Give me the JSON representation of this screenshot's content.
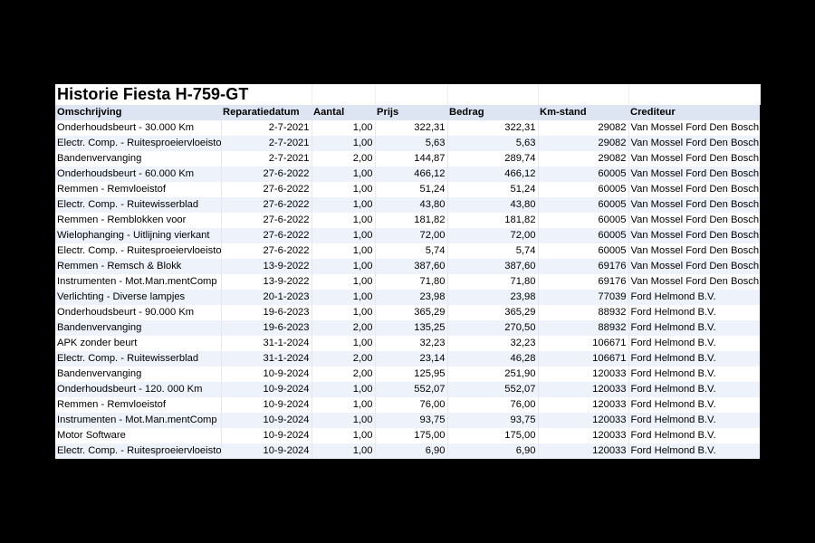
{
  "title": "Historie Fiesta H-759-GT",
  "columns": [
    "Omschrijving",
    "Reparatiedatum",
    "Aantal",
    "Prijs",
    "Bedrag",
    "Km-stand",
    "Crediteur"
  ],
  "rows": [
    [
      "Onderhoudsbeurt - 30.000 Km",
      "2-7-2021",
      "1,00",
      "322,31",
      "322,31",
      "29082",
      "Van Mossel Ford Den Bosch"
    ],
    [
      "Electr. Comp. - Ruitesproeiervloeistof",
      "2-7-2021",
      "1,00",
      "5,63",
      "5,63",
      "29082",
      "Van Mossel Ford Den Bosch"
    ],
    [
      "Bandenvervanging",
      "2-7-2021",
      "2,00",
      "144,87",
      "289,74",
      "29082",
      "Van Mossel Ford Den Bosch"
    ],
    [
      "Onderhoudsbeurt - 60.000 Km",
      "27-6-2022",
      "1,00",
      "466,12",
      "466,12",
      "60005",
      "Van Mossel Ford Den Bosch"
    ],
    [
      "Remmen - Remvloeistof",
      "27-6-2022",
      "1,00",
      "51,24",
      "51,24",
      "60005",
      "Van Mossel Ford Den Bosch"
    ],
    [
      "Electr. Comp. - Ruitewisserblad",
      "27-6-2022",
      "1,00",
      "43,80",
      "43,80",
      "60005",
      "Van Mossel Ford Den Bosch"
    ],
    [
      "Remmen - Remblokken voor",
      "27-6-2022",
      "1,00",
      "181,82",
      "181,82",
      "60005",
      "Van Mossel Ford Den Bosch"
    ],
    [
      "Wielophanging - Uitlijning vierkant",
      "27-6-2022",
      "1,00",
      "72,00",
      "72,00",
      "60005",
      "Van Mossel Ford Den Bosch"
    ],
    [
      "Electr. Comp. - Ruitesproeiervloeistof",
      "27-6-2022",
      "1,00",
      "5,74",
      "5,74",
      "60005",
      "Van Mossel Ford Den Bosch"
    ],
    [
      "Remmen - Remsch & Blokk",
      "13-9-2022",
      "1,00",
      "387,60",
      "387,60",
      "69176",
      "Van Mossel Ford Den Bosch"
    ],
    [
      "Instrumenten - Mot.Man.mentComp",
      "13-9-2022",
      "1,00",
      "71,80",
      "71,80",
      "69176",
      "Van Mossel Ford Den Bosch"
    ],
    [
      "Verlichting - Diverse lampjes",
      "20-1-2023",
      "1,00",
      "23,98",
      "23,98",
      "77039",
      "Ford Helmond B.V."
    ],
    [
      "Onderhoudsbeurt - 90.000 Km",
      "19-6-2023",
      "1,00",
      "365,29",
      "365,29",
      "88932",
      "Ford Helmond B.V."
    ],
    [
      "Bandenvervanging",
      "19-6-2023",
      "2,00",
      "135,25",
      "270,50",
      "88932",
      "Ford Helmond B.V."
    ],
    [
      "APK zonder beurt",
      "31-1-2024",
      "1,00",
      "32,23",
      "32,23",
      "106671",
      "Ford Helmond B.V."
    ],
    [
      "Electr. Comp. - Ruitewisserblad",
      "31-1-2024",
      "2,00",
      "23,14",
      "46,28",
      "106671",
      "Ford Helmond B.V."
    ],
    [
      "Bandenvervanging",
      "10-9-2024",
      "2,00",
      "125,95",
      "251,90",
      "120033",
      "Ford Helmond B.V."
    ],
    [
      "Onderhoudsbeurt - 120. 000 Km",
      "10-9-2024",
      "1,00",
      "552,07",
      "552,07",
      "120033",
      "Ford Helmond B.V."
    ],
    [
      "Remmen - Remvloeistof",
      "10-9-2024",
      "1,00",
      "76,00",
      "76,00",
      "120033",
      "Ford Helmond B.V."
    ],
    [
      "Instrumenten - Mot.Man.mentComp",
      "10-9-2024",
      "1,00",
      "93,75",
      "93,75",
      "120033",
      "Ford Helmond B.V."
    ],
    [
      "Motor Software",
      "10-9-2024",
      "1,00",
      "175,00",
      "175,00",
      "120033",
      "Ford Helmond B.V."
    ],
    [
      "Electr. Comp. - Ruitesproeiervloeistof",
      "10-9-2024",
      "1,00",
      "6,90",
      "6,90",
      "120033",
      "Ford Helmond B.V."
    ]
  ],
  "colors": {
    "background": "#000000",
    "header_fill": "#dde5f3",
    "band_fill": "#eef2fa"
  }
}
